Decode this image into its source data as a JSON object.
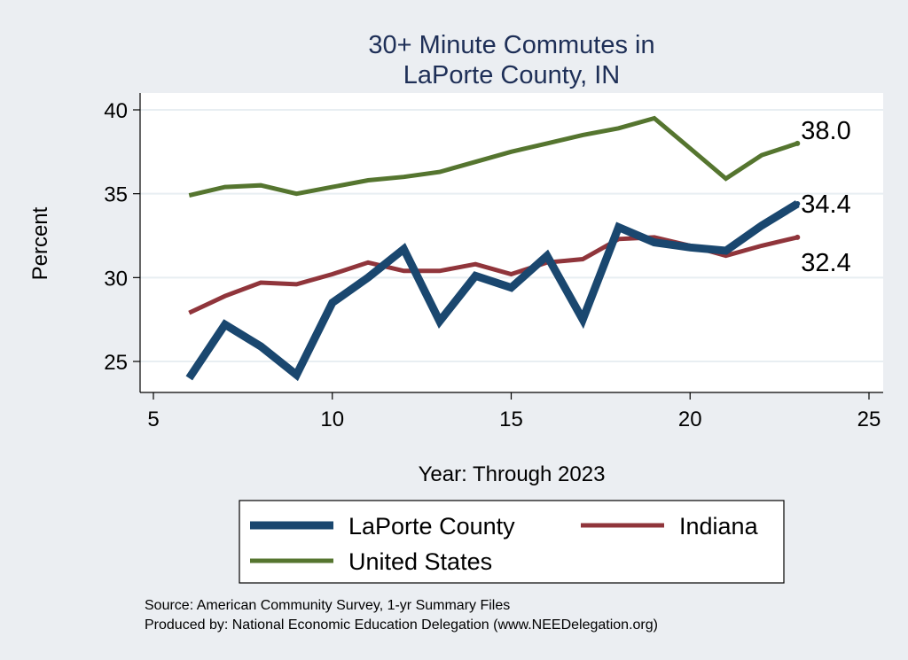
{
  "chart_data": {
    "type": "line",
    "title": [
      "30+ Minute Commutes in",
      "LaPorte County, IN"
    ],
    "xlabel": "Year: Through 2023",
    "ylabel": "Percent",
    "xlim": [
      5,
      25
    ],
    "ylim": [
      23,
      41
    ],
    "xticks": [
      5,
      10,
      15,
      20,
      25
    ],
    "yticks": [
      25,
      30,
      35,
      40
    ],
    "grid": true,
    "legend_position": "bottom",
    "series": [
      {
        "name": "LaPorte County",
        "color": "#1a476f",
        "x": [
          6,
          7,
          8,
          9,
          10,
          11,
          12,
          13,
          14,
          15,
          16,
          17,
          18,
          19,
          20,
          21,
          22,
          23
        ],
        "values": [
          24.0,
          27.2,
          25.9,
          24.2,
          28.5,
          30.0,
          31.7,
          27.4,
          30.1,
          29.4,
          31.3,
          27.5,
          33.0,
          32.1,
          31.8,
          31.6,
          33.1,
          34.4
        ],
        "end_label": "34.4"
      },
      {
        "name": "Indiana",
        "color": "#90353b",
        "x": [
          6,
          7,
          8,
          9,
          10,
          11,
          12,
          13,
          14,
          15,
          16,
          17,
          18,
          19,
          20,
          21,
          22,
          23
        ],
        "values": [
          27.9,
          28.9,
          29.7,
          29.6,
          30.2,
          30.9,
          30.4,
          30.4,
          30.8,
          30.2,
          30.9,
          31.1,
          32.3,
          32.4,
          31.9,
          31.3,
          31.9,
          32.4
        ],
        "end_label": "32.4"
      },
      {
        "name": "United States",
        "color": "#55752f",
        "x": [
          6,
          7,
          8,
          9,
          10,
          11,
          12,
          13,
          14,
          15,
          16,
          17,
          18,
          19,
          20,
          21,
          22,
          23
        ],
        "values": [
          34.9,
          35.4,
          35.5,
          35.0,
          35.4,
          35.8,
          36.0,
          36.3,
          36.9,
          37.5,
          38.0,
          38.5,
          38.9,
          39.5,
          37.7,
          35.9,
          37.3,
          38.0
        ],
        "end_label": "38.0"
      }
    ]
  },
  "source_note": "Source: American Community Survey, 1-yr Summary Files",
  "produced_note": "Produced by: National Economic Education Delegation (www.NEEDelegation.org)"
}
